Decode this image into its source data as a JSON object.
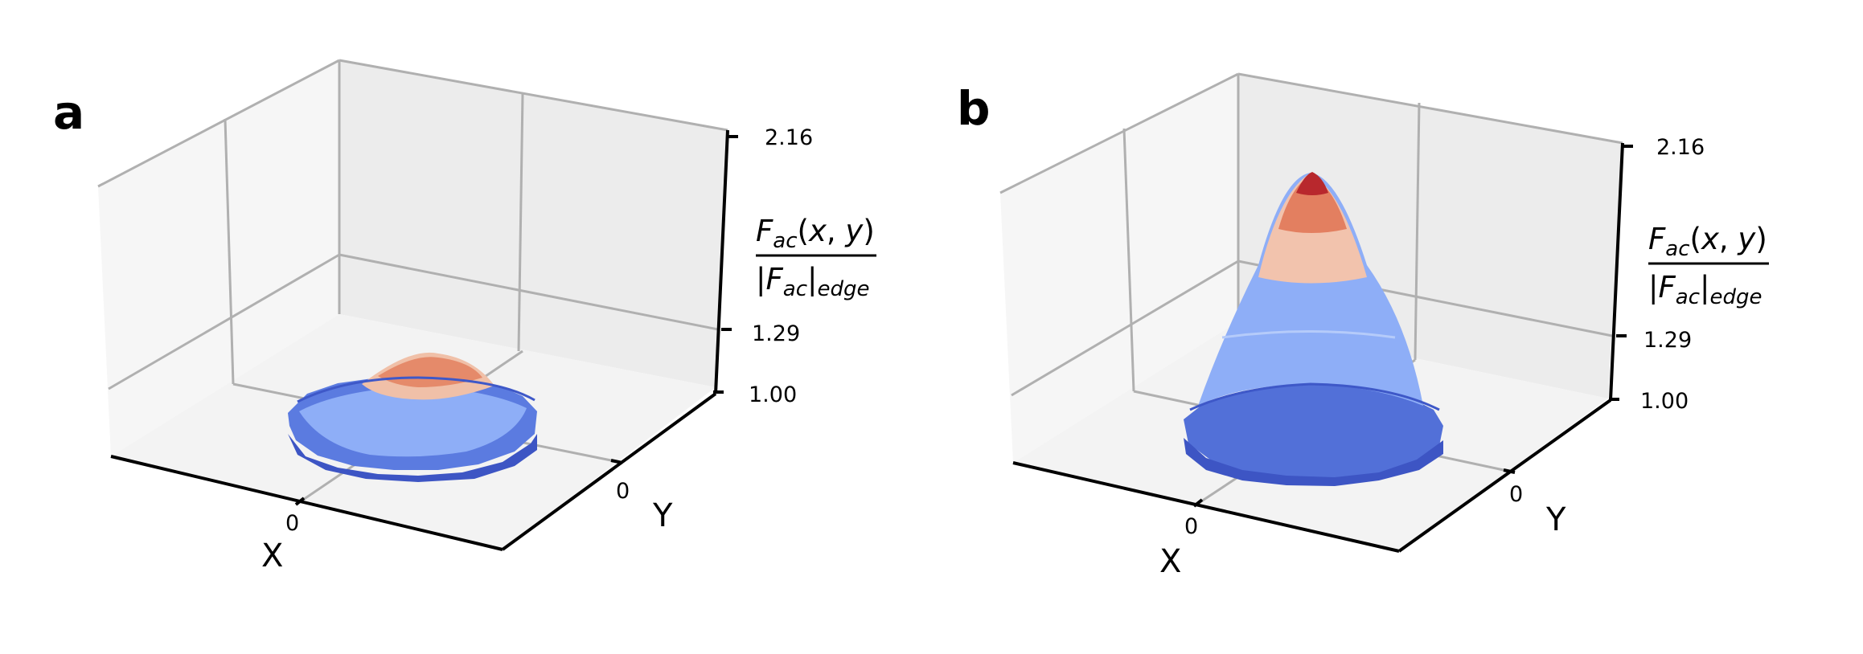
{
  "chart_data": [
    {
      "type": "surface3d",
      "panel_label": "a",
      "xlabel": "X",
      "ylabel": "Y",
      "zlabel": {
        "numerator": "F_ac(x, y)",
        "denominator": "|F_ac|_edge"
      },
      "x_ticks": [
        "0"
      ],
      "y_ticks": [
        "0"
      ],
      "z_ticks": [
        "1.00",
        "1.29",
        "2.16"
      ],
      "zlim": [
        1.0,
        2.16
      ],
      "surface": {
        "base": 1.0,
        "peak": 1.29,
        "shape": "gaussian bump on circular disk",
        "colormap": "coolwarm"
      }
    },
    {
      "type": "surface3d",
      "panel_label": "b",
      "xlabel": "X",
      "ylabel": "Y",
      "zlabel": {
        "numerator": "F_ac(x, y)",
        "denominator": "|F_ac|_edge"
      },
      "x_ticks": [
        "0"
      ],
      "y_ticks": [
        "0"
      ],
      "z_ticks": [
        "1.00",
        "1.29",
        "2.16"
      ],
      "zlim": [
        1.0,
        2.16
      ],
      "surface": {
        "base": 1.0,
        "peak": 2.16,
        "shape": "gaussian bump on circular disk",
        "colormap": "coolwarm"
      }
    }
  ]
}
